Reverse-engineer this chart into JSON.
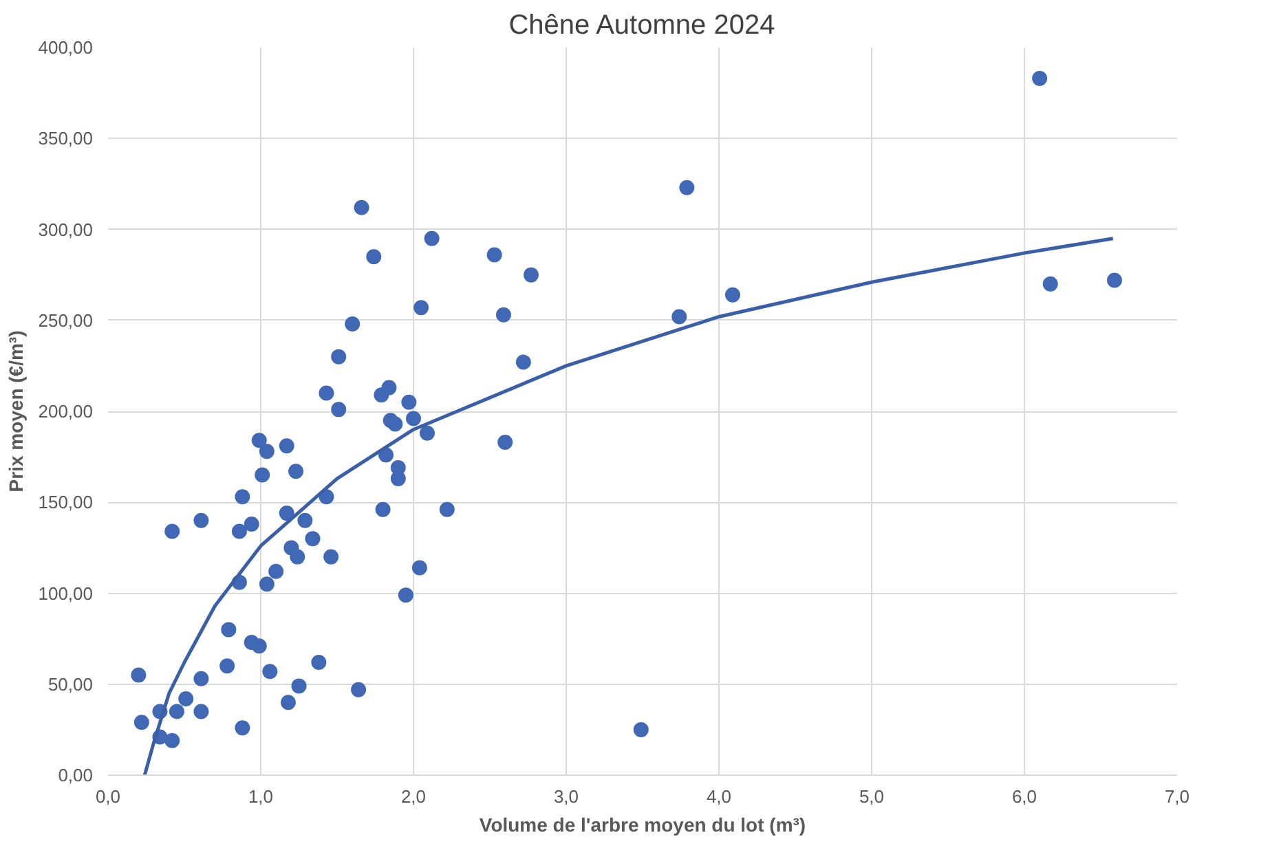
{
  "chart_data": {
    "type": "scatter",
    "title": "Chêne Automne 2024",
    "xlabel": "Volume de l'arbre moyen du lot (m³)",
    "ylabel": "Prix moyen (€/m³)",
    "xlim": [
      0,
      7
    ],
    "ylim": [
      0,
      400
    ],
    "xticks": [
      {
        "value": 0,
        "label": "0,0"
      },
      {
        "value": 1,
        "label": "1,0"
      },
      {
        "value": 2,
        "label": "2,0"
      },
      {
        "value": 3,
        "label": "3,0"
      },
      {
        "value": 4,
        "label": "4,0"
      },
      {
        "value": 5,
        "label": "5,0"
      },
      {
        "value": 6,
        "label": "6,0"
      },
      {
        "value": 7,
        "label": "7,0"
      }
    ],
    "yticks": [
      {
        "value": 0,
        "label": "0,00"
      },
      {
        "value": 50,
        "label": "50,00"
      },
      {
        "value": 100,
        "label": "100,00"
      },
      {
        "value": 150,
        "label": "150,00"
      },
      {
        "value": 200,
        "label": "200,00"
      },
      {
        "value": 250,
        "label": "250,00"
      },
      {
        "value": 300,
        "label": "300,00"
      },
      {
        "value": 350,
        "label": "350,00"
      },
      {
        "value": 400,
        "label": "400,00"
      }
    ],
    "grid": true,
    "marker": "circle",
    "series": [
      {
        "color": "#4068b4",
        "x": [
          0.2,
          0.22,
          0.34,
          0.34,
          0.42,
          0.45,
          0.51,
          0.61,
          0.61,
          0.42,
          0.61,
          0.79,
          0.78,
          0.88,
          0.86,
          0.86,
          0.94,
          0.88,
          0.94,
          0.99,
          0.99,
          1.04,
          1.01,
          1.04,
          1.1,
          1.06,
          1.17,
          1.17,
          1.23,
          1.2,
          1.24,
          1.29,
          1.34,
          1.18,
          1.25,
          1.38,
          1.43,
          1.46,
          1.43,
          1.51,
          1.51,
          1.6,
          1.66,
          1.74,
          1.64,
          1.79,
          1.84,
          1.85,
          1.88,
          1.82,
          1.8,
          1.9,
          1.9,
          1.97,
          2.0,
          1.95,
          2.04,
          2.05,
          2.12,
          2.09,
          2.22,
          2.53,
          2.77,
          2.59,
          2.72,
          2.6,
          3.79,
          3.74,
          4.09,
          3.49,
          6.1,
          6.17,
          6.59
        ],
        "values": [
          55,
          29,
          35,
          21,
          19,
          35,
          42,
          53,
          35,
          134,
          140,
          80,
          60,
          26,
          106,
          134,
          138,
          153,
          73,
          71,
          184,
          178,
          165,
          105,
          112,
          57,
          181,
          144,
          167,
          125,
          120,
          140,
          130,
          40,
          49,
          62,
          153,
          120,
          210,
          201,
          230,
          248,
          312,
          285,
          47,
          209,
          213,
          195,
          193,
          176,
          146,
          169,
          163,
          205,
          196,
          99,
          114,
          257,
          295,
          188,
          146,
          286,
          275,
          253,
          227,
          183,
          323,
          252,
          264,
          25,
          383,
          270,
          272
        ]
      },
      {
        "type": "line",
        "color": "#3a5fa8",
        "marker": "none",
        "line_style": "solid",
        "x": [
          0.24,
          0.3,
          0.4,
          0.5,
          0.7,
          1.0,
          1.5,
          2.0,
          3.0,
          4.0,
          5.0,
          6.0,
          6.58
        ],
        "values": [
          0,
          18,
          45,
          62,
          93,
          126,
          163,
          190,
          225,
          252,
          271,
          287,
          295
        ]
      }
    ]
  }
}
